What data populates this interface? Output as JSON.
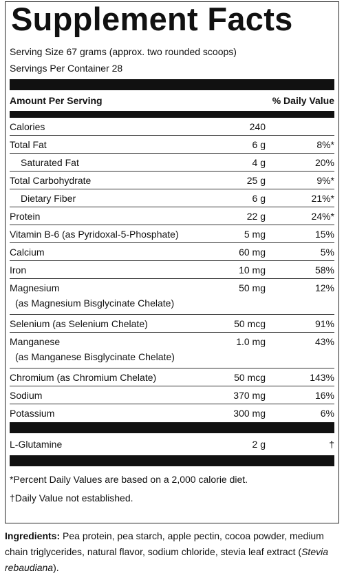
{
  "title": "Supplement Facts",
  "serving_size": "Serving Size 67 grams (approx. two rounded scoops)",
  "servings_per_container": "Servings Per Container 28",
  "header": {
    "amount": "Amount Per Serving",
    "daily_value": "% Daily Value"
  },
  "rows": [
    {
      "name": "Calories",
      "amount": "240"
    },
    {
      "name": "Total Fat",
      "amount": "6 g",
      "dv": "8%*"
    },
    {
      "name": "Saturated Fat",
      "amount": "4 g",
      "dv": "20%",
      "indent": true
    },
    {
      "name": "Total Carbohydrate",
      "amount": "25 g",
      "dv": "9%*"
    },
    {
      "name": "Dietary Fiber",
      "amount": "6 g",
      "dv": "21%*",
      "indent": true
    },
    {
      "name": "Protein",
      "amount": "22 g",
      "dv": "24%*"
    },
    {
      "name": "Vitamin B-6 (as Pyridoxal-5-Phosphate)",
      "amount": "5 mg",
      "dv": "15%"
    },
    {
      "name": "Calcium",
      "amount": "60 mg",
      "dv": "5%"
    },
    {
      "name": "Iron",
      "amount": "10 mg",
      "dv": "58%"
    },
    {
      "name": "Magnesium",
      "sub": "(as Magnesium Bisglycinate Chelate)",
      "amount": "50 mg",
      "dv": "12%"
    },
    {
      "name": "Selenium (as Selenium Chelate)",
      "amount": "50 mcg",
      "dv": "91%"
    },
    {
      "name": "Manganese",
      "sub": "(as Manganese Bisglycinate Chelate)",
      "amount": "1.0 mg",
      "dv": "43%"
    },
    {
      "name": "Chromium (as Chromium Chelate)",
      "amount": "50 mcg",
      "dv": "143%"
    },
    {
      "name": "Sodium",
      "amount": "370 mg",
      "dv": "16%"
    },
    {
      "name": "Potassium",
      "amount": "300 mg",
      "dv": "6%"
    }
  ],
  "extra_row": {
    "name": "L-Glutamine",
    "amount": "2 g",
    "dv": "†"
  },
  "footnotes": [
    "*Percent Daily Values are based on a 2,000 calorie diet.",
    "†Daily Value not established."
  ],
  "ingredients": {
    "label": "Ingredients:",
    "text": "Pea protein, pea starch, apple pectin, cocoa powder, medium chain triglycerides, natural flavor, sodium chloride, stevia leaf extract (",
    "italic": "Stevia rebaudiana",
    "end": ")."
  }
}
